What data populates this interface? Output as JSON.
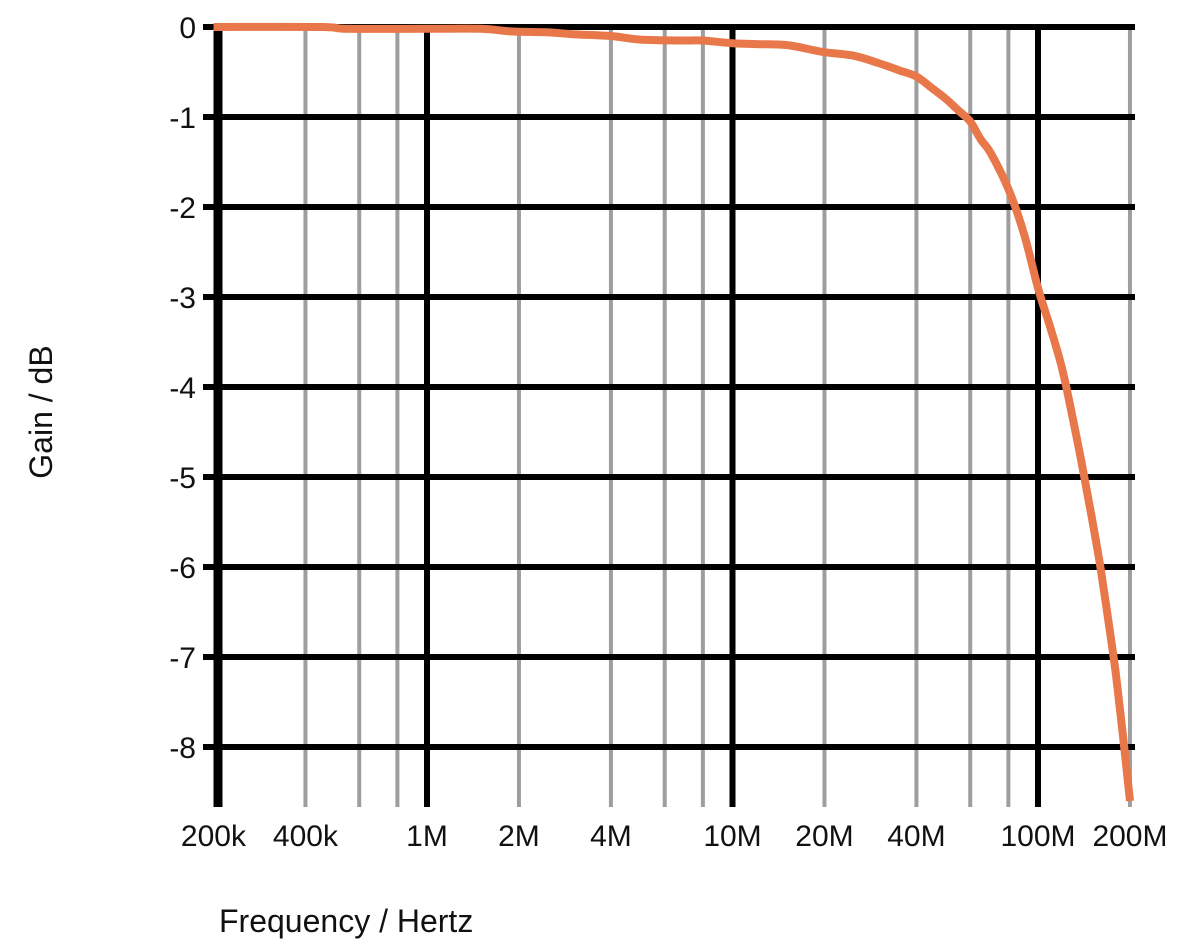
{
  "chart_data": {
    "type": "line",
    "title": "",
    "xlabel": "Frequency / Hertz",
    "ylabel": "Gain / dB",
    "x_scale": "log",
    "xlim": [
      200000,
      200000000
    ],
    "ylim": [
      -8.65,
      0
    ],
    "grid": true,
    "legend": null,
    "xticks": [
      {
        "value": 200000,
        "label": "200k"
      },
      {
        "value": 400000,
        "label": "400k"
      },
      {
        "value": 1000000,
        "label": "1M"
      },
      {
        "value": 2000000,
        "label": "2M"
      },
      {
        "value": 4000000,
        "label": "4M"
      },
      {
        "value": 10000000,
        "label": "10M"
      },
      {
        "value": 20000000,
        "label": "20M"
      },
      {
        "value": 40000000,
        "label": "40M"
      },
      {
        "value": 100000000,
        "label": "100M"
      },
      {
        "value": 200000000,
        "label": "200M"
      }
    ],
    "yticks": [
      {
        "value": 0,
        "label": "0"
      },
      {
        "value": -1,
        "label": "-1"
      },
      {
        "value": -2,
        "label": "-2"
      },
      {
        "value": -3,
        "label": "-3"
      },
      {
        "value": -4,
        "label": "-4"
      },
      {
        "value": -5,
        "label": "-5"
      },
      {
        "value": -6,
        "label": "-6"
      },
      {
        "value": -7,
        "label": "-7"
      },
      {
        "value": -8,
        "label": "-8"
      }
    ],
    "major_gridlines_x": [
      1000000,
      10000000,
      100000000
    ],
    "minor_gridlines_x": [
      400000,
      600000,
      800000,
      2000000,
      4000000,
      6000000,
      8000000,
      20000000,
      40000000,
      60000000,
      80000000,
      200000000
    ],
    "series": [
      {
        "name": "Gain",
        "color": "#E8784A",
        "x": [
          200000,
          450000,
          550000,
          1000000,
          1500000,
          1900000,
          2500000,
          3000000,
          4000000,
          5000000,
          7000000,
          8000000,
          10000000,
          12000000,
          15000000,
          18000000,
          20000000,
          25000000,
          30000000,
          35000000,
          40000000,
          45000000,
          50000000,
          55000000,
          60000000,
          65000000,
          70000000,
          80000000,
          90000000,
          100000000,
          110000000,
          120000000,
          130000000,
          140000000,
          150000000,
          160000000,
          170000000,
          180000000,
          190000000,
          200000000
        ],
        "values": [
          0.0,
          0.0,
          -0.02,
          -0.02,
          -0.02,
          -0.05,
          -0.06,
          -0.08,
          -0.1,
          -0.14,
          -0.15,
          -0.15,
          -0.18,
          -0.19,
          -0.2,
          -0.25,
          -0.28,
          -0.32,
          -0.4,
          -0.48,
          -0.55,
          -0.68,
          -0.8,
          -0.93,
          -1.05,
          -1.25,
          -1.4,
          -1.8,
          -2.3,
          -2.9,
          -3.35,
          -3.8,
          -4.35,
          -4.9,
          -5.45,
          -6.0,
          -6.6,
          -7.2,
          -7.9,
          -8.6
        ]
      }
    ]
  },
  "colors": {
    "curve": "#E8784A",
    "major_grid": "#000000",
    "minor_grid": "#9E9E9E",
    "background": "#FFFFFF"
  }
}
